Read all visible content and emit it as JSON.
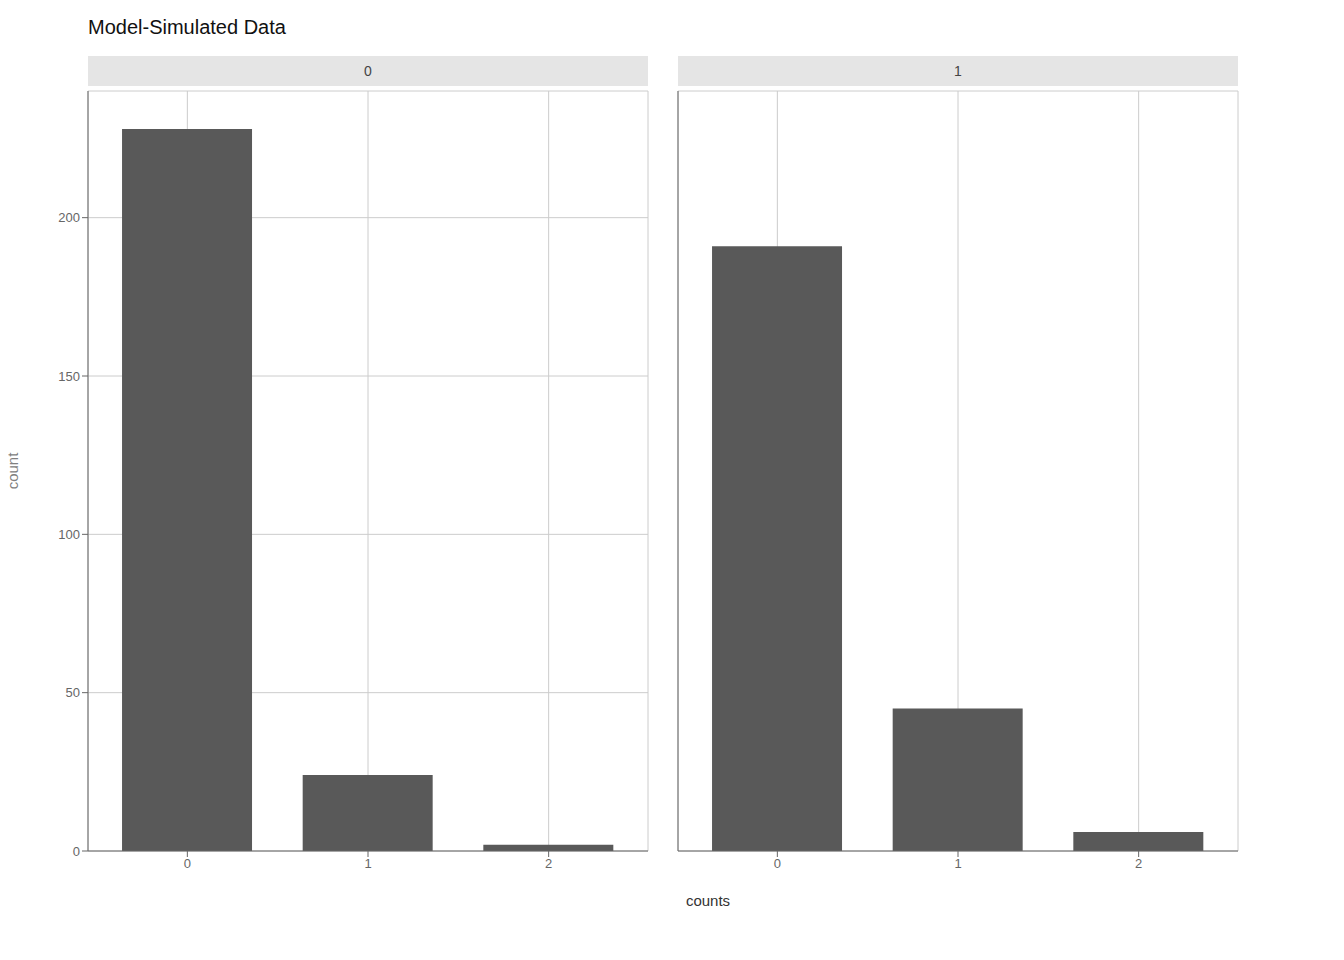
{
  "title": "Model-Simulated Data",
  "xlabel": "counts",
  "chart_data": [
    {
      "type": "bar",
      "title": "0",
      "ylabel": "count",
      "x": [
        0,
        1,
        2
      ],
      "values": [
        228,
        24,
        2
      ],
      "color": "#595959",
      "xlim": [
        -0.55,
        2.55
      ],
      "xticks": [
        0,
        1,
        2
      ],
      "ylim": [
        0,
        240
      ],
      "yticks": [
        0,
        50,
        100,
        150,
        200
      ],
      "grid": true
    },
    {
      "type": "bar",
      "title": "1",
      "x": [
        0,
        1,
        2
      ],
      "values": [
        191,
        45,
        6
      ],
      "color": "#595959",
      "xlim": [
        -0.55,
        2.55
      ],
      "xticks": [
        0,
        1,
        2
      ],
      "ylim": [
        0,
        240
      ],
      "yticks": [
        0,
        50,
        100,
        150,
        200
      ],
      "grid": true,
      "tick_labels": "x"
    }
  ]
}
